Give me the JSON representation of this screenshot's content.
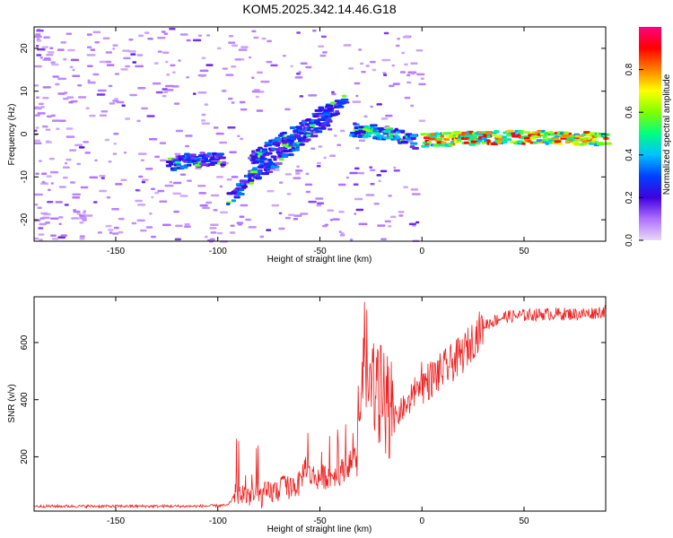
{
  "title": "KOM5.2025.342.14.46.G18",
  "chart_data": [
    {
      "type": "heatmap",
      "name": "spectrogram",
      "xlabel": "Height of straight line (km)",
      "ylabel": "Frequency (Hz)",
      "xlim": [
        -190,
        90
      ],
      "ylim": [
        -25,
        25
      ],
      "xticks": [
        -150,
        -100,
        -50,
        0,
        50
      ],
      "yticks": [
        -20,
        -10,
        0,
        10,
        20
      ],
      "colorbar": {
        "label": "Normalized spectral amplitude",
        "range": [
          0,
          1
        ],
        "ticks": [
          0.0,
          0.2,
          0.4,
          0.6,
          0.8
        ],
        "colormap": [
          "#e8d8f8",
          "#b070ff",
          "#4000e0",
          "#0040ff",
          "#00c0ff",
          "#00ff80",
          "#80ff00",
          "#ffff00",
          "#ff8000",
          "#ff0000",
          "#ff0080"
        ]
      },
      "ridges": [
        {
          "x": [
            -125,
            -115,
            -105,
            -98
          ],
          "y": [
            -7,
            -6,
            -6,
            -6
          ]
        },
        {
          "x": [
            -95,
            -85,
            -75,
            -65,
            -55,
            -45,
            -40
          ],
          "y": [
            -15,
            -10,
            -7,
            -3,
            1,
            5,
            8
          ]
        },
        {
          "x": [
            -85,
            -75,
            -65,
            -55,
            -50,
            -45
          ],
          "y": [
            -6,
            -3,
            0,
            3,
            5,
            6
          ]
        },
        {
          "x": [
            -35,
            -25,
            -15,
            -10,
            -5
          ],
          "y": [
            1,
            0.5,
            0,
            -1,
            -2
          ]
        },
        {
          "x": [
            0,
            20,
            40,
            60,
            80,
            90
          ],
          "y": [
            -1.5,
            -1,
            -0.8,
            -0.8,
            -1,
            -1.5
          ]
        }
      ]
    },
    {
      "type": "line",
      "name": "snr",
      "xlabel": "Height of straight line (km)",
      "ylabel": "SNR (v/v)",
      "xlim": [
        -190,
        90
      ],
      "ylim": [
        10,
        760
      ],
      "xticks": [
        -150,
        -100,
        -50,
        0,
        50
      ],
      "yticks": [
        200,
        400,
        600
      ],
      "color": "#ee2222",
      "envelope": {
        "x": [
          -190,
          -110,
          -95,
          -92,
          -80,
          -70,
          -60,
          -57,
          -55,
          -50,
          -40,
          -30,
          -28,
          -25,
          -20,
          -15,
          -10,
          -5,
          0,
          10,
          20,
          30,
          40,
          60,
          80,
          90
        ],
        "y": [
          25,
          25,
          28,
          60,
          45,
          70,
          90,
          160,
          120,
          110,
          130,
          200,
          500,
          360,
          330,
          300,
          350,
          380,
          450,
          500,
          560,
          660,
          690,
          700,
          700,
          710
        ]
      }
    }
  ]
}
